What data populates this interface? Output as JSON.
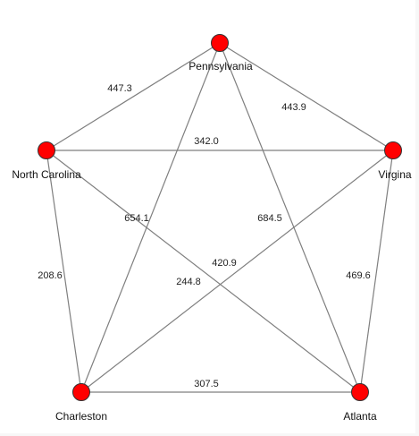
{
  "graph": {
    "node_color": "#ff0000",
    "edge_color": "#7f7f7f",
    "nodes": [
      {
        "id": "pa",
        "label": "Pennsylvania"
      },
      {
        "id": "nc",
        "label": "North Carolina"
      },
      {
        "id": "va",
        "label": "Virgina"
      },
      {
        "id": "ch",
        "label": "Charleston"
      },
      {
        "id": "at",
        "label": "Atlanta"
      }
    ],
    "edges": [
      {
        "source": "pa",
        "target": "nc",
        "weight": "447.3"
      },
      {
        "source": "pa",
        "target": "va",
        "weight": "443.9"
      },
      {
        "source": "nc",
        "target": "va",
        "weight": "342.0"
      },
      {
        "source": "pa",
        "target": "ch",
        "weight": "654.1"
      },
      {
        "source": "pa",
        "target": "at",
        "weight": "684.5"
      },
      {
        "source": "va",
        "target": "ch",
        "weight": "420.9"
      },
      {
        "source": "nc",
        "target": "at",
        "weight": "244.8"
      },
      {
        "source": "nc",
        "target": "ch",
        "weight": "208.6"
      },
      {
        "source": "va",
        "target": "at",
        "weight": "469.6"
      },
      {
        "source": "ch",
        "target": "at",
        "weight": "307.5"
      }
    ]
  }
}
